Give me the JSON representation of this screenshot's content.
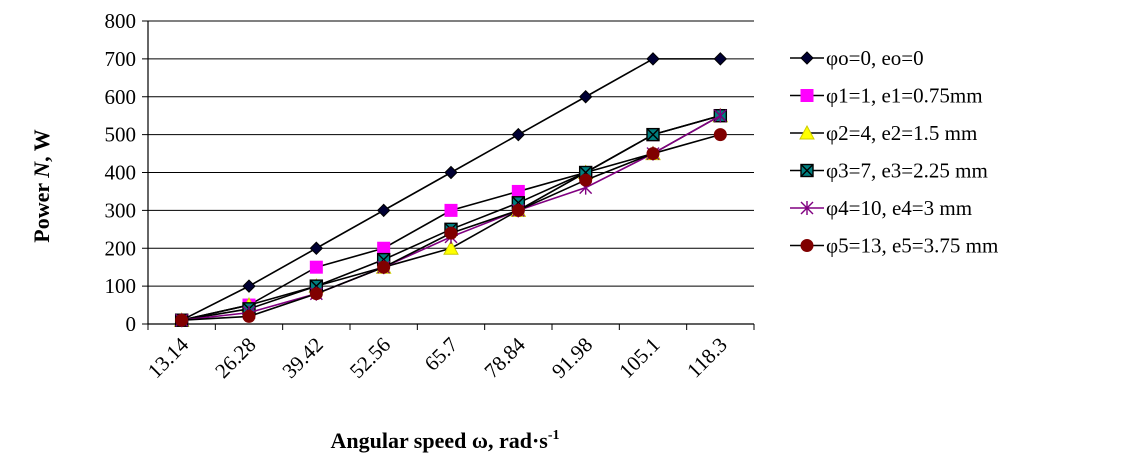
{
  "chart_data": {
    "type": "line",
    "xlabel": "Angular speed ω, rad·s",
    "xlabel_sup": "-1",
    "ylabel_prefix": "Power ",
    "ylabel_var": "N",
    "ylabel_suffix": ", W",
    "categories": [
      "13.14",
      "26.28",
      "39.42",
      "52.56",
      "65.7",
      "78.84",
      "91.98",
      "105.1",
      "118.3"
    ],
    "ylim": [
      0,
      800
    ],
    "yticks": [
      "0",
      "100",
      "200",
      "300",
      "400",
      "500",
      "600",
      "700",
      "800"
    ],
    "grid": "horizontal",
    "legend": "right",
    "series": [
      {
        "name": "φo=0, eo=0",
        "color": "#000000",
        "line": "#000000",
        "marker": "diamond",
        "values": [
          10,
          100,
          200,
          300,
          400,
          500,
          600,
          700,
          700
        ]
      },
      {
        "name": "φ1=1, e1=0.75mm",
        "color": "#ff00ff",
        "line": "#000000",
        "marker": "square",
        "values": [
          10,
          50,
          150,
          200,
          300,
          350,
          400,
          500,
          550
        ]
      },
      {
        "name": "φ2=4, e2=1.5 mm",
        "color": "#ffff00",
        "line": "#000000",
        "marker": "triangle",
        "values": [
          10,
          50,
          100,
          150,
          200,
          300,
          400,
          450,
          550
        ]
      },
      {
        "name": "φ3=7, e3=2.25 mm",
        "color": "#008080",
        "line": "#000000",
        "marker": "xsquare",
        "values": [
          10,
          40,
          100,
          170,
          250,
          320,
          400,
          500,
          550
        ]
      },
      {
        "name": "φ4=10, e4=3 mm",
        "color": "#800080",
        "line": "#800080",
        "marker": "star",
        "values": [
          10,
          30,
          80,
          150,
          230,
          300,
          360,
          450,
          550
        ]
      },
      {
        "name": "φ5=13, e5=3.75 mm",
        "color": "#800000",
        "line": "#000000",
        "marker": "circle",
        "values": [
          10,
          20,
          80,
          150,
          240,
          300,
          380,
          450,
          500
        ]
      }
    ]
  }
}
